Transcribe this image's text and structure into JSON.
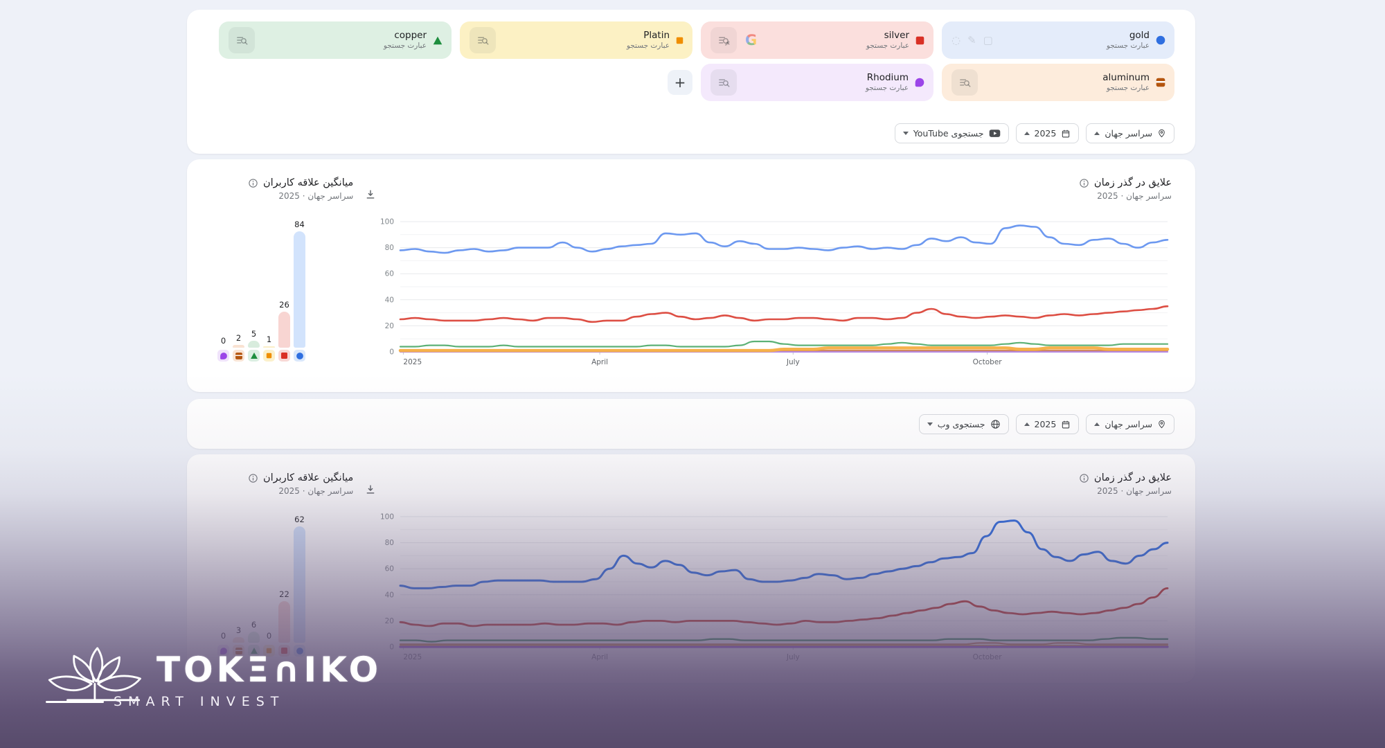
{
  "page_background": "#eef1f8",
  "terms": {
    "subtitle": "عبارت جستجو",
    "add_label": "+",
    "rows": [
      [
        {
          "name": "gold",
          "marker": "circle",
          "color": "#2f6fe0",
          "chip_bg": "#e4ecfa",
          "icon": "faint-tools"
        },
        {
          "name": "silver",
          "marker": "square",
          "color": "#d93025",
          "chip_bg": "#fbdfdd",
          "icon": "search-edit-google"
        },
        {
          "name": "Platin",
          "marker": "diamond",
          "color": "#ef8e00",
          "chip_bg": "#fcf1c4",
          "icon": "search"
        },
        {
          "name": "copper",
          "marker": "triangle",
          "color": "#1e8e3e",
          "chip_bg": "#def0e3",
          "icon": "search"
        }
      ],
      [
        {
          "name": "aluminum",
          "marker": "ibeam",
          "color": "#b4550e",
          "chip_bg": "#fdecdc",
          "icon": "search"
        },
        {
          "name": "Rhodium",
          "marker": "blob",
          "color": "#9b45e8",
          "chip_bg": "#f4e9fc",
          "icon": "search"
        }
      ]
    ]
  },
  "controls": {
    "youtube": {
      "search_label": "جستجوی YouTube",
      "year": "2025",
      "region": "سراسر جهان"
    },
    "web": {
      "search_label": "جستجوی وب",
      "year": "2025",
      "region": "سراسر جهان"
    }
  },
  "chart_data": [
    {
      "type": "line",
      "context": "youtube-search",
      "title": "علایق در گذر زمان",
      "subtitle": "سراسر جهان · 2025",
      "ylim": [
        0,
        100
      ],
      "yticks": [
        0,
        20,
        40,
        60,
        80,
        100
      ],
      "xticks": [
        "2025",
        "April",
        "July",
        "October"
      ],
      "xtick_positions": [
        0.004,
        0.26,
        0.512,
        0.765
      ],
      "grid": true,
      "series": [
        {
          "name": "Rhodium",
          "color": "#b58ae6",
          "width": 2.2,
          "values": [
            0,
            0,
            0,
            0,
            0,
            0,
            0,
            0,
            0,
            0,
            0,
            0,
            0,
            0,
            0,
            0,
            0,
            0,
            0,
            0,
            0,
            0,
            0,
            0,
            0,
            0,
            0,
            0,
            0,
            0,
            0,
            0,
            0,
            0,
            0,
            0,
            0,
            0,
            0,
            0,
            0,
            0,
            0,
            0,
            0,
            0,
            0,
            0,
            0,
            0,
            0,
            0,
            0
          ]
        },
        {
          "name": "aluminum",
          "color": "#cd8057",
          "width": 2.0,
          "values": [
            1,
            1,
            1,
            1,
            1,
            1,
            1,
            1,
            1,
            1,
            1,
            1,
            1,
            1,
            1,
            1,
            1,
            1,
            1,
            1,
            1,
            1,
            1,
            1,
            1,
            1,
            1,
            1,
            1,
            1,
            1,
            1,
            1,
            1,
            1,
            1,
            1,
            1,
            1,
            1,
            1,
            1,
            1,
            1,
            1,
            1,
            1,
            1,
            1,
            1,
            1,
            1,
            1
          ]
        },
        {
          "name": "Platin",
          "color": "#f6b14a",
          "width": 4.5,
          "values": [
            1,
            1,
            1,
            1,
            1,
            1,
            1,
            1,
            1,
            1,
            1,
            1,
            1,
            1,
            1,
            1,
            1,
            1,
            1,
            1,
            1,
            1,
            1,
            1,
            1,
            1,
            2,
            2,
            2,
            3,
            3,
            3,
            3,
            3,
            3,
            3,
            3,
            3,
            3,
            3,
            3,
            3,
            2,
            2,
            3,
            3,
            3,
            3,
            2,
            2,
            2,
            2,
            2
          ]
        },
        {
          "name": "copper",
          "color": "#5cb176",
          "width": 2.2,
          "values": [
            4,
            4,
            5,
            5,
            4,
            4,
            4,
            5,
            4,
            4,
            4,
            4,
            4,
            4,
            4,
            4,
            4,
            5,
            5,
            4,
            4,
            4,
            4,
            5,
            8,
            8,
            6,
            5,
            5,
            5,
            5,
            5,
            5,
            6,
            7,
            6,
            5,
            5,
            5,
            5,
            5,
            6,
            7,
            6,
            5,
            5,
            5,
            5,
            5,
            6,
            6,
            6,
            6
          ]
        },
        {
          "name": "silver",
          "color": "#dd4f44",
          "width": 2.6,
          "values": [
            25,
            26,
            25,
            24,
            24,
            24,
            25,
            26,
            25,
            24,
            26,
            26,
            25,
            23,
            24,
            24,
            27,
            29,
            30,
            27,
            25,
            26,
            28,
            26,
            24,
            25,
            25,
            26,
            26,
            25,
            24,
            26,
            26,
            25,
            26,
            30,
            33,
            29,
            27,
            26,
            27,
            28,
            27,
            26,
            28,
            29,
            28,
            29,
            30,
            31,
            32,
            33,
            35
          ]
        },
        {
          "name": "gold",
          "color": "#6d99f0",
          "width": 2.6,
          "values": [
            78,
            79,
            77,
            76,
            78,
            79,
            77,
            78,
            80,
            80,
            80,
            84,
            80,
            77,
            79,
            81,
            82,
            83,
            91,
            90,
            91,
            84,
            81,
            85,
            83,
            79,
            79,
            80,
            79,
            78,
            80,
            81,
            79,
            80,
            79,
            82,
            87,
            85,
            88,
            84,
            83,
            95,
            97,
            96,
            88,
            83,
            82,
            86,
            87,
            83,
            80,
            84,
            86
          ]
        }
      ]
    },
    {
      "type": "bar",
      "context": "youtube-search",
      "title": "میانگین علاقه کاربران",
      "subtitle": "سراسر جهان · 2025",
      "categories": [
        "Rhodium",
        "aluminum",
        "copper",
        "Platin",
        "silver",
        "gold"
      ],
      "values": [
        0,
        2,
        5,
        1,
        26,
        84
      ],
      "bar_colors": [
        "#ecdcfb",
        "#f9e2d2",
        "#d8ecdd",
        "#fbeec7",
        "#f8d5d2",
        "#d2e3fc"
      ],
      "chip_colors": [
        "#f0e3fb",
        "#f9e4d4",
        "#dcefe2",
        "#fbf0cb",
        "#f8d9d6",
        "#d9e7fb"
      ],
      "marker_colors": [
        "#9b45e8",
        "#b4550e",
        "#1e8e3e",
        "#ef8e00",
        "#d93025",
        "#2f6fe0"
      ],
      "marker_shapes": [
        "blob",
        "ibeam",
        "triangle",
        "diamond",
        "square",
        "circle"
      ]
    },
    {
      "type": "line",
      "context": "web-search",
      "title": "علایق در گذر زمان",
      "subtitle": "سراسر جهان · 2025",
      "ylim": [
        0,
        100
      ],
      "yticks": [
        0,
        20,
        40,
        60,
        80,
        100
      ],
      "xticks": [
        "2025",
        "April",
        "July",
        "October"
      ],
      "xtick_positions": [
        0.004,
        0.26,
        0.512,
        0.765
      ],
      "grid": true,
      "series": [
        {
          "name": "Platin",
          "color": "#e8a70a",
          "width": 2.0,
          "values": [
            1,
            1,
            1,
            1,
            1,
            1,
            1,
            1,
            1,
            1,
            1,
            1,
            1,
            1,
            1,
            1,
            1,
            1,
            1,
            1,
            1,
            1,
            1,
            1,
            1,
            1,
            1,
            1,
            1,
            1,
            1,
            1,
            1,
            1,
            1,
            1,
            1,
            1,
            1,
            1,
            1,
            1,
            1,
            1,
            1,
            1,
            1,
            1,
            1,
            1
          ]
        },
        {
          "name": "aluminum",
          "color": "#c2703d",
          "width": 2.2,
          "values": [
            2,
            2,
            2,
            2,
            2,
            2,
            2,
            2,
            2,
            2,
            2,
            2,
            2,
            2,
            2,
            2,
            2,
            2,
            2,
            2,
            2,
            2,
            2,
            2,
            2,
            2,
            2,
            2,
            2,
            2,
            2,
            2,
            2,
            2,
            2,
            2,
            2,
            3,
            3,
            2,
            2,
            2,
            3,
            3,
            2,
            2,
            2,
            2,
            2,
            2
          ]
        },
        {
          "name": "copper",
          "color": "#17803c",
          "width": 2.4,
          "values": [
            5,
            5,
            4,
            5,
            5,
            5,
            5,
            5,
            5,
            5,
            5,
            5,
            5,
            5,
            5,
            5,
            5,
            5,
            5,
            5,
            6,
            6,
            5,
            5,
            5,
            5,
            5,
            5,
            5,
            5,
            5,
            5,
            5,
            5,
            5,
            6,
            6,
            6,
            5,
            5,
            5,
            5,
            5,
            5,
            5,
            6,
            7,
            7,
            6,
            6
          ]
        },
        {
          "name": "Rhodium",
          "color": "#8a3fd1",
          "width": 3.2,
          "values": [
            0,
            0,
            0,
            0,
            0,
            0,
            0,
            0,
            0,
            0,
            0,
            0,
            0,
            0,
            0,
            0,
            0,
            0,
            0,
            0,
            0,
            0,
            0,
            0,
            0,
            0,
            0,
            0,
            0,
            0,
            0,
            0,
            0,
            0,
            0,
            0,
            0,
            0,
            0,
            0,
            0,
            0,
            0,
            0,
            0,
            0,
            0,
            0,
            0,
            0
          ]
        },
        {
          "name": "silver",
          "color": "#bf2d21",
          "width": 2.8,
          "values": [
            19,
            17,
            16,
            18,
            18,
            16,
            17,
            17,
            17,
            17,
            18,
            17,
            17,
            18,
            18,
            17,
            19,
            20,
            20,
            19,
            20,
            20,
            20,
            20,
            19,
            18,
            17,
            18,
            20,
            19,
            19,
            20,
            21,
            22,
            24,
            26,
            28,
            30,
            33,
            35,
            31,
            28,
            26,
            25,
            26,
            27,
            26,
            25,
            26,
            28,
            30,
            33,
            38,
            45
          ]
        },
        {
          "name": "gold",
          "color": "#2c6de2",
          "width": 3.0,
          "values": [
            47,
            45,
            45,
            46,
            47,
            47,
            50,
            51,
            51,
            51,
            51,
            50,
            50,
            50,
            52,
            60,
            70,
            64,
            61,
            66,
            63,
            57,
            55,
            58,
            59,
            52,
            50,
            50,
            51,
            53,
            56,
            55,
            52,
            53,
            56,
            58,
            60,
            62,
            65,
            68,
            69,
            72,
            85,
            96,
            97,
            88,
            75,
            69,
            66,
            71,
            73,
            66,
            64,
            70,
            75,
            80
          ]
        }
      ]
    },
    {
      "type": "bar",
      "context": "web-search",
      "title": "میانگین علاقه کاربران",
      "subtitle": "سراسر جهان · 2025",
      "categories": [
        "Rhodium",
        "aluminum",
        "copper",
        "Platin",
        "silver",
        "gold"
      ],
      "values": [
        0,
        3,
        6,
        0,
        22,
        62
      ],
      "bar_colors": [
        "#ecdcfb",
        "#f9e2d2",
        "#d8ecdd",
        "#fbeec7",
        "#f8d5d2",
        "#d2e3fc"
      ],
      "chip_colors": [
        "#f0e3fb",
        "#f9e4d4",
        "#dcefe2",
        "#fbf0cb",
        "#f8d9d6",
        "#d9e7fb"
      ],
      "marker_colors": [
        "#9b45e8",
        "#b4550e",
        "#1e8e3e",
        "#ef8e00",
        "#d93025",
        "#2f6fe0"
      ],
      "marker_shapes": [
        "blob",
        "ibeam",
        "triangle",
        "diamond",
        "square",
        "circle"
      ]
    }
  ],
  "watermark": {
    "brand": "TOKΞ∩IKO",
    "tagline": "SMART INVEST",
    "gradient_color": "#685a7e",
    "text_color": "#ffffff"
  }
}
